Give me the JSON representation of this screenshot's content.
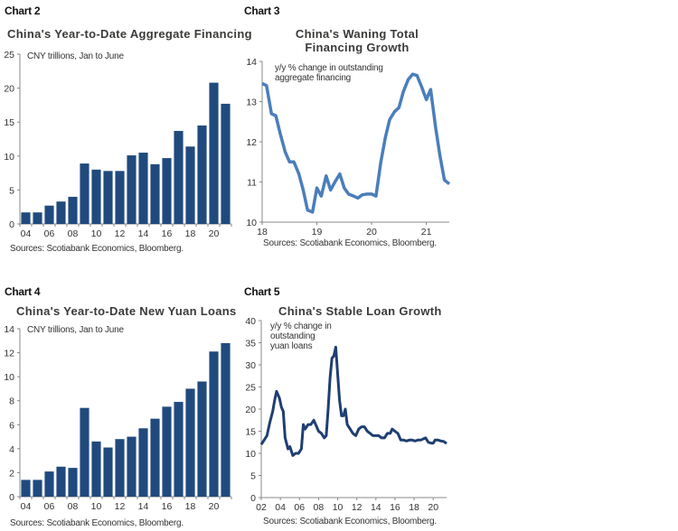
{
  "colors": {
    "bar": "#204a7d",
    "line3": "#4a7ebb",
    "line5": "#1f3f72",
    "axis": "#888888"
  },
  "chart_data": [
    {
      "label": "Chart 2",
      "type": "bar",
      "title": "China's Year-to-Date Aggregate Financing",
      "annotation": "CNY trillions, Jan to June",
      "source": "Sources: Scotiabank Economics, Bloomberg.",
      "categories": [
        "2004",
        "2005",
        "2006",
        "2007",
        "2008",
        "2009",
        "2010",
        "2011",
        "2012",
        "2013",
        "2014",
        "2015",
        "2016",
        "2017",
        "2018",
        "2019",
        "2020",
        "2021"
      ],
      "values": [
        1.7,
        1.7,
        2.7,
        3.3,
        4.0,
        8.9,
        8.0,
        7.8,
        7.8,
        10.1,
        10.5,
        8.8,
        9.7,
        13.7,
        11.4,
        14.5,
        20.8,
        17.7
      ],
      "x_tick_labels": [
        "04",
        "06",
        "08",
        "10",
        "12",
        "14",
        "16",
        "18",
        "20"
      ],
      "y_ticks": [
        0,
        5,
        10,
        15,
        20,
        25
      ],
      "ylim": [
        0,
        25
      ],
      "xlabel": "",
      "ylabel": ""
    },
    {
      "label": "Chart 3",
      "type": "line",
      "title": "China's Waning Total Financing Growth",
      "annotation": "y/y % change in outstanding aggregate financing",
      "source": "Sources: Scotiabank Economics, Bloomberg.",
      "x": [
        2018.0,
        2018.08,
        2018.17,
        2018.25,
        2018.33,
        2018.42,
        2018.5,
        2018.58,
        2018.67,
        2018.75,
        2018.83,
        2018.92,
        2019.0,
        2019.08,
        2019.17,
        2019.25,
        2019.33,
        2019.42,
        2019.5,
        2019.58,
        2019.67,
        2019.75,
        2019.83,
        2019.92,
        2020.0,
        2020.08,
        2020.17,
        2020.25,
        2020.33,
        2020.42,
        2020.5,
        2020.58,
        2020.67,
        2020.75,
        2020.83,
        2020.92,
        2021.0,
        2021.08,
        2021.17,
        2021.25,
        2021.33,
        2021.42
      ],
      "y": [
        13.45,
        13.4,
        12.7,
        12.65,
        12.2,
        11.75,
        11.5,
        11.5,
        11.2,
        10.8,
        10.3,
        10.25,
        10.85,
        10.65,
        11.15,
        10.8,
        11.0,
        11.2,
        10.85,
        10.7,
        10.65,
        10.6,
        10.68,
        10.7,
        10.7,
        10.65,
        11.5,
        12.1,
        12.55,
        12.75,
        12.85,
        13.25,
        13.55,
        13.68,
        13.65,
        13.35,
        13.05,
        13.3,
        12.35,
        11.65,
        11.05,
        10.95
      ],
      "x_ticks": [
        2018,
        2019,
        2020,
        2021
      ],
      "x_tick_labels": [
        "18",
        "19",
        "20",
        "21"
      ],
      "y_ticks": [
        10,
        11,
        12,
        13,
        14
      ],
      "xlim": [
        2018,
        2021.42
      ],
      "ylim": [
        10,
        14
      ]
    },
    {
      "label": "Chart 4",
      "type": "bar",
      "title": "China's Year-to-Date New Yuan Loans",
      "annotation": "CNY trillions, Jan to June",
      "source": "Sources: Scotiabank Economics, Bloomberg.",
      "categories": [
        "2004",
        "2005",
        "2006",
        "2007",
        "2008",
        "2009",
        "2010",
        "2011",
        "2012",
        "2013",
        "2014",
        "2015",
        "2016",
        "2017",
        "2018",
        "2019",
        "2020",
        "2021"
      ],
      "values": [
        1.4,
        1.4,
        2.1,
        2.5,
        2.4,
        7.4,
        4.6,
        4.1,
        4.8,
        5.0,
        5.7,
        6.5,
        7.5,
        7.9,
        9.0,
        9.6,
        12.1,
        12.8
      ],
      "x_tick_labels": [
        "04",
        "06",
        "08",
        "10",
        "12",
        "14",
        "16",
        "18",
        "20"
      ],
      "y_ticks": [
        0,
        2,
        4,
        6,
        8,
        10,
        12,
        14
      ],
      "ylim": [
        0,
        14
      ]
    },
    {
      "label": "Chart 5",
      "type": "line",
      "title": "China's Stable Loan Growth",
      "annotation": "y/y % change in outstanding yuan loans",
      "source": "Sources: Scotiabank Economics, Bloomberg.",
      "x": [
        2002.0,
        2002.3,
        2002.6,
        2002.9,
        2003.2,
        2003.4,
        2003.6,
        2003.9,
        2004.1,
        2004.3,
        2004.5,
        2004.8,
        2005.0,
        2005.3,
        2005.6,
        2005.9,
        2006.2,
        2006.4,
        2006.6,
        2006.9,
        2007.2,
        2007.5,
        2007.8,
        2008.0,
        2008.3,
        2008.6,
        2008.8,
        2009.0,
        2009.2,
        2009.4,
        2009.6,
        2009.8,
        2010.0,
        2010.2,
        2010.4,
        2010.6,
        2010.8,
        2011.0,
        2011.3,
        2011.6,
        2011.9,
        2012.2,
        2012.5,
        2012.8,
        2013.1,
        2013.4,
        2013.7,
        2014.0,
        2014.3,
        2014.6,
        2014.9,
        2015.2,
        2015.5,
        2015.7,
        2016.0,
        2016.3,
        2016.6,
        2016.9,
        2017.2,
        2017.5,
        2017.8,
        2018.1,
        2018.4,
        2018.7,
        2019.0,
        2019.2,
        2019.5,
        2019.8,
        2020.0,
        2020.2,
        2020.5,
        2020.8,
        2021.1,
        2021.4
      ],
      "y": [
        12,
        13,
        14,
        17,
        19.5,
        22,
        24,
        22.5,
        20.5,
        19.5,
        13.5,
        11,
        11.5,
        9.5,
        10,
        10,
        11,
        16.5,
        15.5,
        16.5,
        16.5,
        17.5,
        16,
        15,
        14.5,
        13.5,
        14,
        20,
        27,
        31.5,
        32,
        34,
        28,
        22,
        18.5,
        18.5,
        20,
        16.5,
        15.5,
        14.5,
        14,
        15.5,
        16,
        16,
        15,
        14.5,
        14,
        14,
        14,
        13.5,
        13.5,
        14.5,
        14.5,
        15.5,
        15,
        14.5,
        13,
        13,
        12.8,
        13,
        13,
        12.8,
        13,
        13,
        13.3,
        13.5,
        12.5,
        12.3,
        12.3,
        13,
        13,
        12.8,
        12.7,
        12.2
      ],
      "x_ticks": [
        2002,
        2004,
        2006,
        2008,
        2010,
        2012,
        2014,
        2016,
        2018,
        2020
      ],
      "x_tick_labels": [
        "02",
        "04",
        "06",
        "08",
        "10",
        "12",
        "14",
        "16",
        "18",
        "20"
      ],
      "y_ticks": [
        0,
        5,
        10,
        15,
        20,
        25,
        30,
        35,
        40
      ],
      "xlim": [
        2002,
        2021.4
      ],
      "ylim": [
        0,
        40
      ]
    }
  ]
}
